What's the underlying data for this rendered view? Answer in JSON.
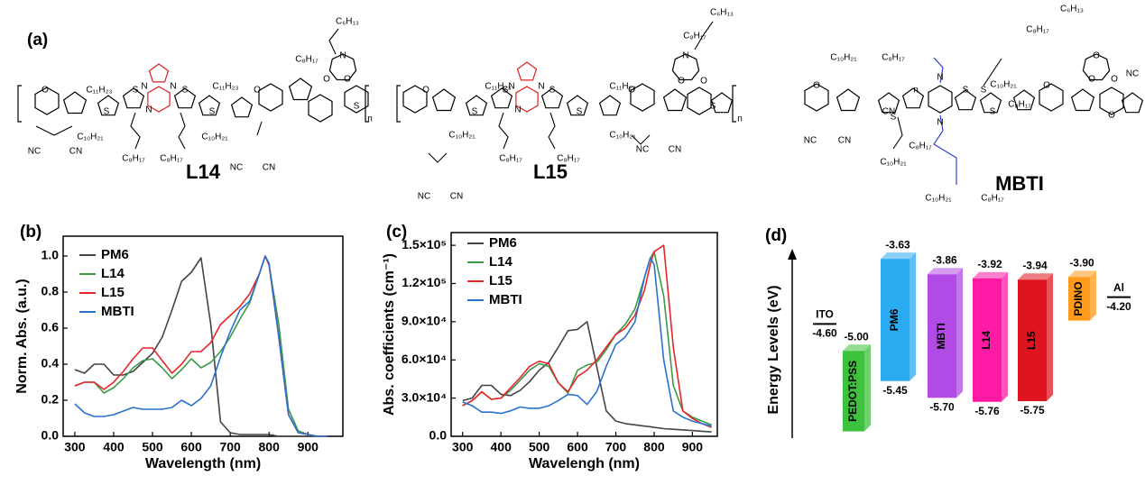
{
  "panel_labels": [
    "(a)",
    "(b)",
    "(c)",
    "(d)"
  ],
  "structures": [
    {
      "name": "L14",
      "texts": [
        "C₁₁H₂₃",
        "C₁₁H₂₃",
        "C₁₀H₂₁",
        "C₈H₁₇",
        "C₁₀H₂₁",
        "C₈H₁₇",
        "C₆H₁₃",
        "C₈H₁₇",
        "NC",
        "CN",
        "NC",
        "CN",
        "n",
        "S",
        "S",
        "S",
        "S",
        "N",
        "N",
        "N",
        "O",
        "O",
        "O",
        "O",
        "N",
        "S"
      ]
    },
    {
      "name": "L15",
      "texts": [
        "C₁₁H₂₃",
        "C₁₁H₂₃",
        "C₁₀H₂₁",
        "C₈H₁₇",
        "C₁₀H₂₁",
        "C₈H₁₇",
        "C₆H₁₃",
        "C₈H₁₇",
        "NC",
        "CN",
        "NC",
        "CN",
        "n",
        "S",
        "S",
        "S",
        "S",
        "N",
        "N",
        "N",
        "O",
        "O",
        "O",
        "O",
        "N",
        "S"
      ]
    },
    {
      "name": "MBTI",
      "texts": [
        "C₆H₁₃",
        "C₈H₁₇",
        "C₁₀H₂₁",
        "C₈H₁₇",
        "C₁₀H₂₁",
        "C₈H₁₇",
        "NC",
        "CN",
        "C₈H₁₇",
        "C₁₀H₂₁",
        "C₁₀H₂₁",
        "C₈H₁₇",
        "NC",
        "CN",
        "n",
        "S",
        "S",
        "S",
        "S",
        "N",
        "N",
        "O",
        "O",
        "O",
        "O",
        "O",
        "O"
      ]
    }
  ],
  "chart_data": [
    {
      "type": "line",
      "xlabel": "Wavelength (nm)",
      "ylabel": "Norm. Abs. (a.u.)",
      "xlim": [
        270,
        990
      ],
      "xticks": [
        300,
        400,
        500,
        600,
        700,
        800,
        900
      ],
      "ylim": [
        0,
        1.11
      ],
      "yticks": [
        {
          "value": 0,
          "label": "0.0"
        },
        {
          "value": 0.2,
          "label": "0.2"
        },
        {
          "value": 0.4,
          "label": "0.4"
        },
        {
          "value": 0.6,
          "label": "0.6"
        },
        {
          "value": 0.8,
          "label": "0.8"
        },
        {
          "value": 1,
          "label": "1.0"
        }
      ],
      "legend": "upper left",
      "x": [
        300,
        325,
        350,
        375,
        400,
        425,
        450,
        475,
        500,
        525,
        550,
        575,
        600,
        625,
        650,
        675,
        700,
        725,
        750,
        775,
        790,
        800,
        825,
        850,
        875,
        900,
        925,
        950
      ],
      "series": [
        {
          "name": "PM6",
          "color": "#444444",
          "values": [
            0.37,
            0.35,
            0.4,
            0.4,
            0.34,
            0.34,
            0.36,
            0.41,
            0.46,
            0.55,
            0.7,
            0.86,
            0.91,
            0.99,
            0.62,
            0.08,
            0.02,
            0.01,
            0.01,
            0.01,
            0.01,
            0.01,
            0,
            0,
            0,
            0,
            0,
            0
          ]
        },
        {
          "name": "L14",
          "color": "#3a9a4a",
          "values": [
            0.28,
            0.3,
            0.3,
            0.24,
            0.27,
            0.32,
            0.38,
            0.42,
            0.43,
            0.38,
            0.32,
            0.37,
            0.43,
            0.38,
            0.41,
            0.47,
            0.55,
            0.65,
            0.74,
            0.9,
            1.0,
            0.95,
            0.62,
            0.15,
            0.03,
            0.01,
            0,
            0
          ]
        },
        {
          "name": "L15",
          "color": "#e8262a",
          "values": [
            0.28,
            0.3,
            0.3,
            0.26,
            0.3,
            0.36,
            0.43,
            0.49,
            0.49,
            0.42,
            0.35,
            0.4,
            0.47,
            0.47,
            0.52,
            0.62,
            0.67,
            0.72,
            0.79,
            0.9,
            1.0,
            0.95,
            0.55,
            0.12,
            0.02,
            0.01,
            0,
            0
          ]
        },
        {
          "name": "MBTI",
          "color": "#2a72d0",
          "values": [
            0.18,
            0.13,
            0.11,
            0.11,
            0.12,
            0.14,
            0.16,
            0.15,
            0.15,
            0.15,
            0.16,
            0.2,
            0.17,
            0.21,
            0.28,
            0.44,
            0.58,
            0.7,
            0.75,
            0.9,
            1.0,
            0.96,
            0.55,
            0.12,
            0.02,
            0.01,
            0,
            0
          ]
        }
      ]
    },
    {
      "type": "line",
      "xlabel": "Wavelengh (nm)",
      "ylabel": "Abs. coefficients (cm⁻¹)",
      "xlim": [
        270,
        965
      ],
      "xticks": [
        300,
        400,
        500,
        600,
        700,
        800,
        900
      ],
      "ylim": [
        0,
        160000
      ],
      "yticks": [
        {
          "value": 0,
          "label": "0.0"
        },
        {
          "value": 30000,
          "label": "3.0×10⁴"
        },
        {
          "value": 60000,
          "label": "6.0×10⁴"
        },
        {
          "value": 90000,
          "label": "9.0×10⁴"
        },
        {
          "value": 120000,
          "label": "1.2×10⁵"
        },
        {
          "value": 150000,
          "label": "1.5×10⁵"
        }
      ],
      "legend": "upper left",
      "x": [
        300,
        325,
        350,
        375,
        400,
        425,
        450,
        475,
        500,
        525,
        550,
        575,
        600,
        625,
        650,
        675,
        700,
        725,
        750,
        775,
        790,
        800,
        825,
        850,
        875,
        900,
        925,
        950
      ],
      "series": [
        {
          "name": "PM6",
          "color": "#444444",
          "values": [
            28000,
            30000,
            40000,
            40000,
            33000,
            32000,
            36000,
            43000,
            52000,
            58000,
            70000,
            83000,
            84000,
            90000,
            55000,
            20000,
            12000,
            10000,
            9000,
            8000,
            7500,
            7000,
            6000,
            5500,
            5000,
            4500,
            4000,
            3500
          ]
        },
        {
          "name": "L14",
          "color": "#3a9a4a",
          "values": [
            24000,
            28000,
            35000,
            29000,
            30000,
            36000,
            44000,
            52000,
            57000,
            55000,
            42000,
            34000,
            52000,
            56000,
            58000,
            68000,
            80000,
            88000,
            100000,
            125000,
            140000,
            145000,
            110000,
            40000,
            20000,
            15000,
            12000,
            9000
          ]
        },
        {
          "name": "L15",
          "color": "#e8262a",
          "values": [
            24000,
            28000,
            35000,
            29000,
            30000,
            38000,
            46000,
            55000,
            59000,
            57000,
            42000,
            35000,
            47000,
            52000,
            60000,
            70000,
            80000,
            85000,
            95000,
            115000,
            135000,
            145000,
            150000,
            70000,
            20000,
            14000,
            10000,
            7000
          ]
        },
        {
          "name": "MBTI",
          "color": "#2a72d0",
          "values": [
            27000,
            24000,
            19000,
            19000,
            18000,
            20000,
            23000,
            22000,
            22000,
            24000,
            28000,
            33000,
            32000,
            25000,
            35000,
            55000,
            72000,
            78000,
            90000,
            125000,
            140000,
            135000,
            60000,
            20000,
            15000,
            12000,
            10000,
            8000
          ]
        }
      ]
    },
    {
      "type": "energy-levels",
      "ylabel": "Energy Levels (eV)",
      "ylim": [
        -6.3,
        -3.4
      ],
      "levels": [
        {
          "name": "ITO",
          "kind": "line",
          "color": "#000000",
          "values": [
            -4.6
          ],
          "value_labels": [
            "-4.60"
          ]
        },
        {
          "name": "PEDOT:PSS",
          "kind": "bar",
          "color": "#3cc23c",
          "values": [
            -5.0,
            -6.2
          ],
          "value_labels": [
            "-5.00"
          ]
        },
        {
          "name": "PM6",
          "kind": "bar",
          "color": "#2aaaf0",
          "values": [
            -3.63,
            -5.45
          ],
          "value_labels": [
            "-3.63",
            "-5.45"
          ]
        },
        {
          "name": "MBTI",
          "kind": "bar",
          "color": "#b24ae6",
          "values": [
            -3.86,
            -5.7
          ],
          "value_labels": [
            "-3.86",
            "-5.70"
          ]
        },
        {
          "name": "L14",
          "kind": "bar",
          "color": "#ff1aa6",
          "values": [
            -3.92,
            -5.76
          ],
          "value_labels": [
            "-3.92",
            "-5.76"
          ]
        },
        {
          "name": "L15",
          "kind": "bar",
          "color": "#e0141e",
          "values": [
            -3.94,
            -5.75
          ],
          "value_labels": [
            "-3.94",
            "-5.75"
          ]
        },
        {
          "name": "PDINO",
          "kind": "bar",
          "color": "#ff9a1a",
          "values": [
            -3.9,
            -4.55
          ],
          "value_labels": [
            "-3.90"
          ]
        },
        {
          "name": "Al",
          "kind": "line",
          "color": "#000000",
          "values": [
            -4.2
          ],
          "value_labels": [
            "-4.20"
          ]
        }
      ]
    }
  ]
}
